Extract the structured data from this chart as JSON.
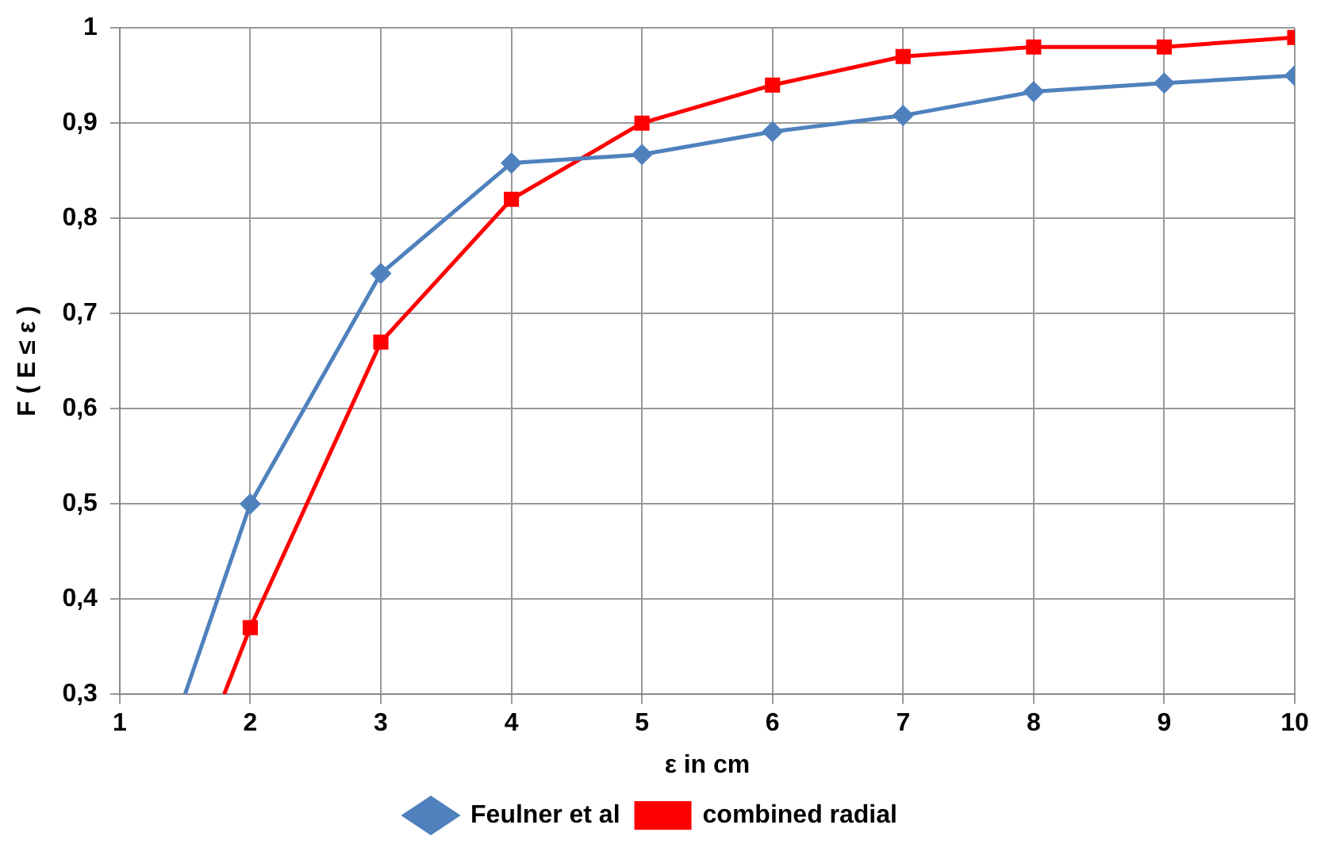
{
  "chart_data": {
    "type": "line",
    "xlabel": "ε in cm",
    "ylabel": "F ( E ≤ ε )",
    "series": [
      {
        "name": "Feulner et al",
        "color": "#4f81bd",
        "marker": "diamond",
        "x": [
          1.5,
          2,
          3,
          4,
          5,
          6,
          7,
          8,
          9,
          10
        ],
        "values": [
          0.3,
          0.5,
          0.742,
          0.858,
          0.867,
          0.891,
          0.908,
          0.933,
          0.942,
          0.95
        ]
      },
      {
        "name": "combined radial",
        "color": "#ff0000",
        "marker": "square",
        "x": [
          1.8,
          2,
          3,
          4,
          5,
          6,
          7,
          8,
          9,
          10
        ],
        "values": [
          0.3,
          0.37,
          0.67,
          0.82,
          0.9,
          0.94,
          0.97,
          0.98,
          0.98,
          0.99
        ]
      }
    ],
    "xlim": [
      1,
      10
    ],
    "xticks": [
      1,
      2,
      3,
      4,
      5,
      6,
      7,
      8,
      9,
      10
    ],
    "ylim": [
      0.3,
      1
    ],
    "yticks": [
      {
        "value": 0.3,
        "label": "0,3"
      },
      {
        "value": 0.4,
        "label": "0,4"
      },
      {
        "value": 0.5,
        "label": "0,5"
      },
      {
        "value": 0.6,
        "label": "0,6"
      },
      {
        "value": 0.7,
        "label": "0,7"
      },
      {
        "value": 0.8,
        "label": "0,8"
      },
      {
        "value": 0.9,
        "label": "0,9"
      },
      1
    ],
    "grid": true,
    "legend": "bottom"
  }
}
